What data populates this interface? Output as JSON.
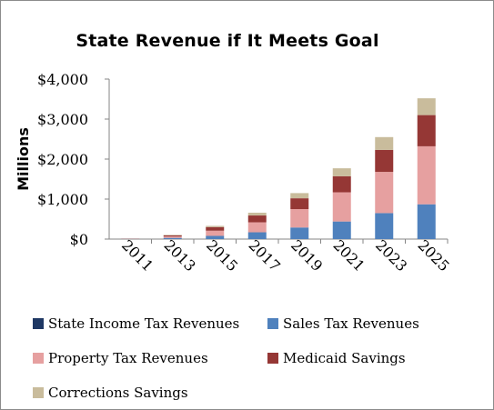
{
  "chart_data": {
    "type": "bar",
    "stacked": true,
    "title": "State Revenue if It Meets Goal",
    "xlabel": "",
    "ylabel": "Millions",
    "ylim": [
      0,
      4000
    ],
    "yticks": [
      0,
      1000,
      2000,
      3000,
      4000
    ],
    "ytick_labels": [
      "$0",
      "$1,000",
      "$2,000",
      "$3,000",
      "$4,000"
    ],
    "grid": false,
    "legend_position": "bottom",
    "categories": [
      "2011",
      "2013",
      "2015",
      "2017",
      "2019",
      "2021",
      "2023",
      "2025"
    ],
    "series": [
      {
        "name": "State Income Tax Revenues",
        "color": "#1f3864",
        "values": [
          0,
          0,
          0,
          0,
          0,
          0,
          0,
          0
        ]
      },
      {
        "name": "Sales Tax Revenues",
        "color": "#4f81bd",
        "values": [
          5,
          30,
          80,
          170,
          290,
          440,
          650,
          870
        ]
      },
      {
        "name": "Property Tax Revenues",
        "color": "#e6a0a0",
        "values": [
          5,
          35,
          130,
          250,
          460,
          730,
          1030,
          1450
        ]
      },
      {
        "name": "Medicaid Savings",
        "color": "#953735",
        "values": [
          3,
          30,
          90,
          170,
          270,
          400,
          550,
          780
        ]
      },
      {
        "name": "Corrections Savings",
        "color": "#c9bc9c",
        "values": [
          2,
          10,
          30,
          70,
          130,
          200,
          320,
          420
        ]
      }
    ]
  }
}
